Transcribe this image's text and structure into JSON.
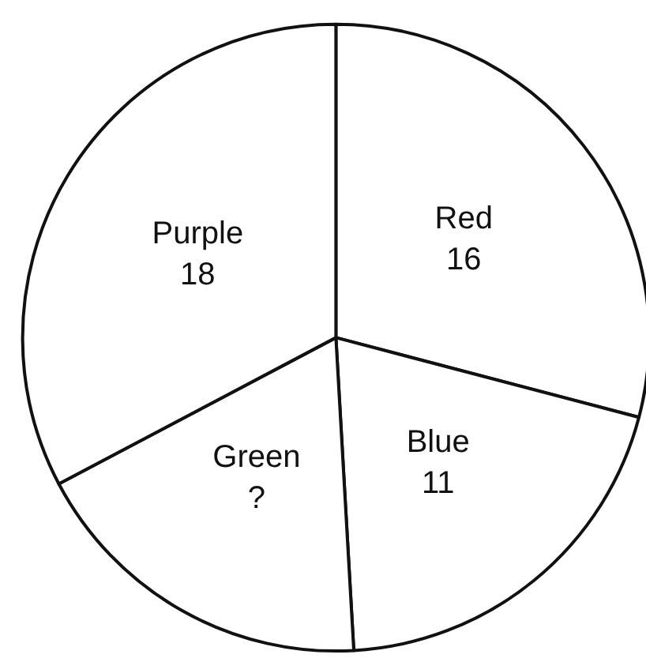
{
  "chart_data": {
    "type": "pie",
    "categories": [
      "Red",
      "Blue",
      "Green",
      "Purple"
    ],
    "values": [
      16,
      11,
      10,
      18
    ],
    "value_labels": [
      "16",
      "11",
      "?",
      "18"
    ],
    "colors": [
      "#ffffff",
      "#ffffff",
      "#ffffff",
      "#ffffff"
    ]
  }
}
